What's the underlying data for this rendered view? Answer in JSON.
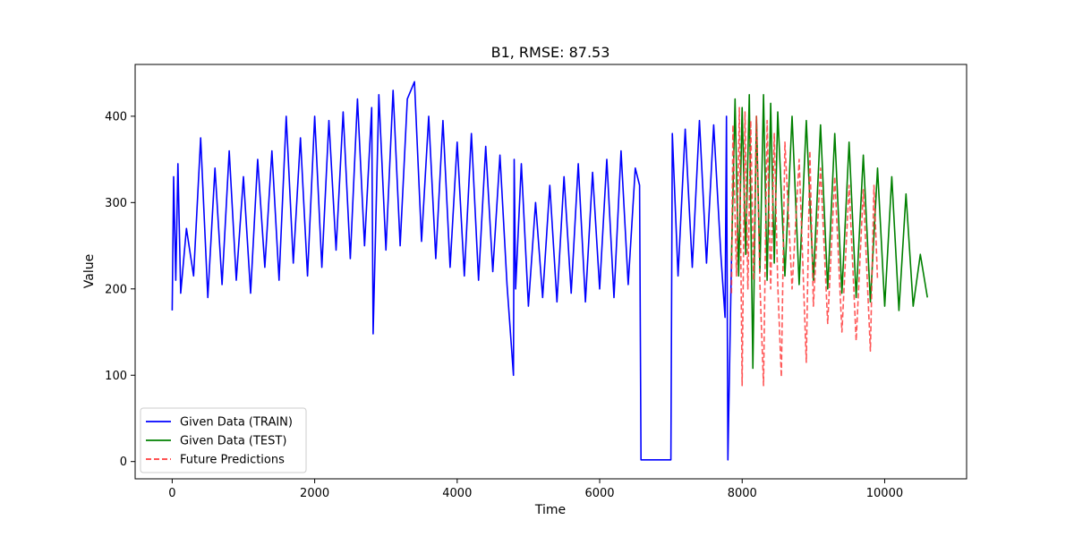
{
  "chart_data": {
    "type": "line",
    "title": "B1, RMSE: 87.53",
    "xlabel": "Time",
    "ylabel": "Value",
    "xlim": [
      -520,
      11150
    ],
    "ylim": [
      -20,
      460
    ],
    "xticks": [
      0,
      2000,
      4000,
      6000,
      8000,
      10000
    ],
    "yticks": [
      0,
      100,
      200,
      300,
      400
    ],
    "legend": {
      "position": "lower-left"
    },
    "series": [
      {
        "name": "Given Data (TRAIN)",
        "color": "#0000ff",
        "style": "solid",
        "x": [
          0,
          20,
          50,
          80,
          120,
          200,
          300,
          400,
          500,
          600,
          700,
          800,
          900,
          1000,
          1100,
          1200,
          1300,
          1400,
          1500,
          1600,
          1700,
          1800,
          1900,
          2000,
          2100,
          2200,
          2300,
          2400,
          2500,
          2600,
          2700,
          2800,
          2820,
          2900,
          3000,
          3100,
          3200,
          3300,
          3400,
          3500,
          3600,
          3700,
          3800,
          3900,
          4000,
          4100,
          4200,
          4300,
          4400,
          4500,
          4600,
          4700,
          4790,
          4800,
          4820,
          4900,
          5000,
          5100,
          5200,
          5300,
          5400,
          5500,
          5600,
          5700,
          5800,
          5900,
          6000,
          6100,
          6200,
          6300,
          6400,
          6500,
          6560,
          6580,
          7000,
          7020,
          7100,
          7200,
          7300,
          7400,
          7500,
          7600,
          7700,
          7760,
          7780,
          7800,
          7850
        ],
        "y": [
          175,
          330,
          210,
          345,
          195,
          270,
          215,
          375,
          190,
          340,
          205,
          360,
          210,
          330,
          195,
          350,
          225,
          360,
          210,
          400,
          230,
          375,
          215,
          400,
          225,
          395,
          245,
          405,
          235,
          420,
          250,
          410,
          148,
          425,
          245,
          430,
          250,
          420,
          440,
          255,
          400,
          235,
          395,
          225,
          370,
          215,
          380,
          210,
          365,
          220,
          355,
          205,
          100,
          350,
          200,
          345,
          180,
          300,
          190,
          320,
          185,
          330,
          195,
          345,
          185,
          335,
          200,
          350,
          190,
          360,
          205,
          340,
          320,
          2,
          2,
          380,
          215,
          385,
          225,
          395,
          230,
          390,
          240,
          167,
          400,
          2,
          235
        ]
      },
      {
        "name": "Given Data (TEST)",
        "color": "#008000",
        "style": "solid",
        "x": [
          7850,
          7900,
          7950,
          8000,
          8050,
          8100,
          8150,
          8200,
          8250,
          8300,
          8350,
          8400,
          8450,
          8500,
          8600,
          8700,
          8800,
          8900,
          9000,
          9100,
          9200,
          9300,
          9400,
          9500,
          9600,
          9700,
          9800,
          9900,
          10000,
          10100,
          10200,
          10300,
          10400,
          10500,
          10600
        ],
        "y": [
          235,
          420,
          215,
          410,
          240,
          425,
          108,
          400,
          220,
          425,
          210,
          415,
          230,
          405,
          215,
          400,
          205,
          395,
          210,
          390,
          200,
          380,
          195,
          370,
          190,
          355,
          185,
          340,
          180,
          330,
          175,
          310,
          180,
          240,
          190
        ]
      },
      {
        "name": "Future Predictions",
        "color": "#ff3b3b",
        "style": "dashed",
        "x": [
          7850,
          7870,
          7920,
          7960,
          8000,
          8040,
          8080,
          8120,
          8160,
          8200,
          8250,
          8300,
          8350,
          8400,
          8450,
          8500,
          8550,
          8600,
          8700,
          8800,
          8900,
          8950,
          9000,
          9100,
          9200,
          9300,
          9400,
          9500,
          9600,
          9700,
          9800,
          9850,
          9900
        ],
        "y": [
          195,
          390,
          215,
          410,
          88,
          405,
          200,
          395,
          210,
          400,
          205,
          88,
          395,
          200,
          380,
          205,
          98,
          370,
          200,
          350,
          115,
          360,
          180,
          340,
          160,
          330,
          150,
          320,
          140,
          315,
          128,
          320,
          210
        ]
      }
    ]
  }
}
